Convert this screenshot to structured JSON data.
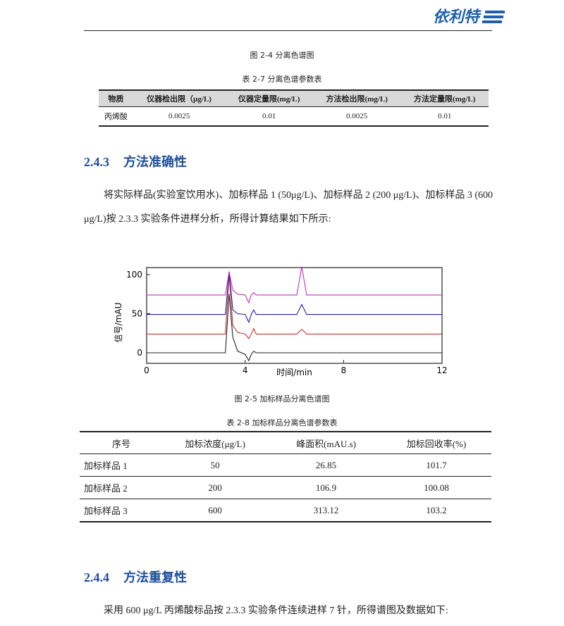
{
  "header": {
    "logo": "依利特"
  },
  "figure_2_4": {
    "caption": "图 2-4 分离色谱图"
  },
  "table_2_7": {
    "title": "表 2-7 分离色谱参数表",
    "columns": [
      "物质",
      "仪器检出限（μg/L)",
      "仪器定量限(mg/L)",
      "方法检出限(mg/L)",
      "方法定量限(mg/L)"
    ],
    "rows": [
      [
        "丙烯酸",
        "0.0025",
        "0.01",
        "0.0025",
        "0.01"
      ]
    ]
  },
  "section_2_4_3": {
    "number": "2.4.3",
    "title": "方法准确性",
    "paragraph": [
      "将实际样品(实验室饮用水)、加标样品 1 (50μg/L)、加标样品 2 (200 μg/L)、加标样品 3 (600",
      "μg/L)按 2.3.3 实验条件进样分析，所得计算结果如下所示:"
    ]
  },
  "chart_data": {
    "type": "line",
    "xlabel": "时间/min",
    "ylabel": "信号/mAU",
    "x": [
      0,
      3.2,
      3.35,
      3.5,
      3.7,
      4.0,
      4.15,
      4.25,
      4.35,
      4.45,
      4.6,
      6.1,
      6.3,
      6.5,
      12
    ],
    "series": [
      {
        "color": "#222222",
        "values": [
          0,
          0,
          75,
          20,
          2,
          -2,
          -10,
          -2,
          2,
          0,
          0,
          0,
          0,
          0,
          0
        ]
      },
      {
        "color": "#d03030",
        "values": [
          24,
          24,
          100,
          35,
          26,
          24,
          18,
          24,
          31,
          24,
          24,
          24,
          30,
          24,
          24
        ]
      },
      {
        "color": "#2020b0",
        "values": [
          49,
          49,
          104,
          55,
          50,
          49,
          39,
          49,
          55,
          49,
          49,
          49,
          62,
          49,
          49
        ]
      },
      {
        "color": "#c030c0",
        "values": [
          74,
          74,
          104,
          80,
          75,
          74,
          64,
          74,
          77,
          74,
          74,
          74,
          110,
          74,
          74
        ]
      }
    ],
    "xlim": [
      0,
      12
    ],
    "xticks": [
      0,
      4,
      8,
      12
    ],
    "ylim": [
      -13.5,
      109
    ],
    "yticks": [
      0,
      50,
      100
    ]
  },
  "figure_2_5": {
    "caption": "图 2-5  加标样品分离色谱图"
  },
  "table_2_8": {
    "title": "表 2-8  加标样品分离色谱参数表",
    "columns": [
      "序号",
      "加标浓度(μg/L)",
      "峰面积(mAU.s)",
      "加标回收率(%)"
    ],
    "rows": [
      [
        "加标样品 1",
        "50",
        "26.85",
        "101.7"
      ],
      [
        "加标样品 2",
        "200",
        "106.9",
        "100.08"
      ],
      [
        "加标样品 3",
        "600",
        "313.12",
        "103.2"
      ]
    ]
  },
  "section_2_4_4": {
    "number": "2.4.4",
    "title": "方法重复性",
    "paragraph": [
      "采用 600 μg/L 丙烯酸标品按 2.3.3 实验条件连续进样 7 针，所得谱图及数据如下:"
    ]
  }
}
